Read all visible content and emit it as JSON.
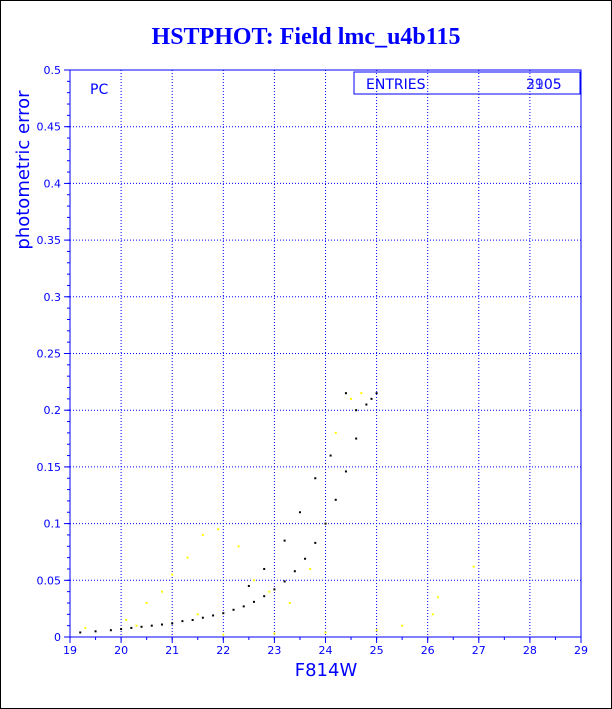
{
  "title": "HSTPHOT: Field lmc_u4b115",
  "colors": {
    "frame": "#0000ff",
    "grid": "#0000ff",
    "text": "#0000ff",
    "series_black": "#000000",
    "series_yellow": "#ffff00"
  },
  "chart_data": {
    "type": "scatter",
    "title": "HSTPHOT: Field lmc_u4b115",
    "xlabel": "F814W",
    "ylabel": "photometric error",
    "xlim": [
      19,
      29
    ],
    "ylim": [
      0,
      0.5
    ],
    "xticks": [
      "19",
      "20",
      "21",
      "22",
      "23",
      "24",
      "25",
      "26",
      "27",
      "28",
      "29"
    ],
    "yticks": [
      "0",
      "0.05",
      "0.1",
      "0.15",
      "0.2",
      "0.25",
      "0.3",
      "0.35",
      "0.4",
      "0.45",
      "0.5"
    ],
    "grid": true,
    "annotation": "PC",
    "stats_box": {
      "label": "ENTRIES",
      "values": [
        "2905",
        "3105"
      ]
    },
    "series": [
      {
        "color": "#000000",
        "points": [
          [
            19.2,
            0.004
          ],
          [
            19.5,
            0.005
          ],
          [
            19.8,
            0.006
          ],
          [
            20.0,
            0.007
          ],
          [
            20.2,
            0.008
          ],
          [
            20.4,
            0.009
          ],
          [
            20.6,
            0.01
          ],
          [
            20.8,
            0.011
          ],
          [
            21.0,
            0.012
          ],
          [
            21.2,
            0.014
          ],
          [
            21.4,
            0.015
          ],
          [
            21.6,
            0.017
          ],
          [
            21.8,
            0.019
          ],
          [
            22.0,
            0.021
          ],
          [
            22.2,
            0.024
          ],
          [
            22.4,
            0.027
          ],
          [
            22.6,
            0.031
          ],
          [
            22.8,
            0.036
          ],
          [
            23.0,
            0.042
          ],
          [
            23.2,
            0.049
          ],
          [
            23.4,
            0.058
          ],
          [
            23.6,
            0.069
          ],
          [
            23.8,
            0.083
          ],
          [
            24.0,
            0.1
          ],
          [
            24.2,
            0.121
          ],
          [
            24.4,
            0.146
          ],
          [
            24.6,
            0.175
          ],
          [
            24.8,
            0.205
          ],
          [
            25.0,
            0.215
          ],
          [
            24.4,
            0.215
          ],
          [
            24.6,
            0.2
          ],
          [
            23.5,
            0.11
          ],
          [
            23.8,
            0.14
          ],
          [
            24.1,
            0.16
          ],
          [
            23.2,
            0.085
          ],
          [
            22.8,
            0.06
          ],
          [
            22.5,
            0.045
          ],
          [
            24.9,
            0.21
          ]
        ]
      },
      {
        "color": "#ffff00",
        "points": [
          [
            19.3,
            0.008
          ],
          [
            20.1,
            0.015
          ],
          [
            20.5,
            0.03
          ],
          [
            20.8,
            0.04
          ],
          [
            21.0,
            0.055
          ],
          [
            21.3,
            0.07
          ],
          [
            21.6,
            0.09
          ],
          [
            21.9,
            0.095
          ],
          [
            22.3,
            0.08
          ],
          [
            22.6,
            0.05
          ],
          [
            22.9,
            0.04
          ],
          [
            23.3,
            0.03
          ],
          [
            23.7,
            0.06
          ],
          [
            24.2,
            0.18
          ],
          [
            24.5,
            0.21
          ],
          [
            24.7,
            0.215
          ],
          [
            22.0,
            0.002
          ],
          [
            23.0,
            0.003
          ],
          [
            24.0,
            0.004
          ],
          [
            25.0,
            0.006
          ],
          [
            25.5,
            0.01
          ],
          [
            26.1,
            0.02
          ],
          [
            26.2,
            0.035
          ],
          [
            26.9,
            0.062
          ],
          [
            21.5,
            0.02
          ],
          [
            20.3,
            0.01
          ]
        ]
      }
    ]
  }
}
